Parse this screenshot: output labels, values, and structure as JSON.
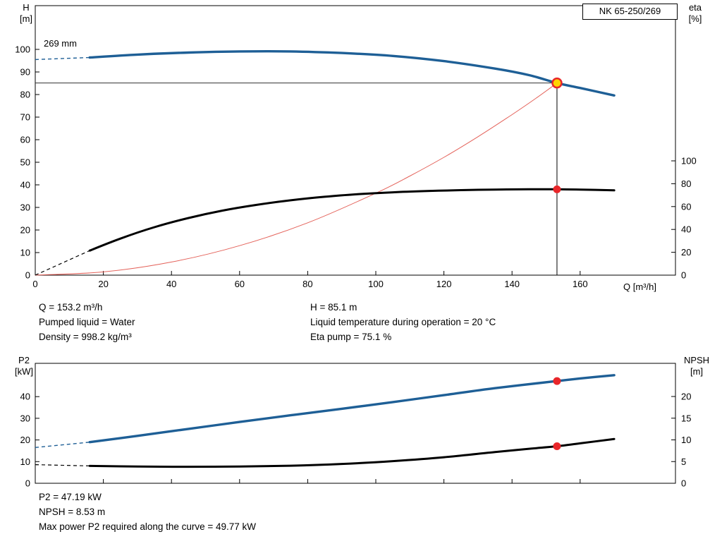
{
  "header": {
    "model": "NK 65-250/269"
  },
  "labels": {
    "h_line1": "H",
    "h_line2": "[m]",
    "eta_line1": "eta",
    "eta_line2": "[%]",
    "q": "Q [m³/h]",
    "p2_line1": "P2",
    "p2_line2": "[kW]",
    "npsh_line1": "NPSH",
    "npsh_line2": "[m]"
  },
  "info_top": {
    "left": [
      "Q = 153.2 m³/h",
      "Pumped liquid = Water",
      "Density = 998.2 kg/m³"
    ],
    "right": [
      "H = 85.1 m",
      "Liquid temperature during operation = 20 °C",
      "Eta pump = 75.1 %"
    ]
  },
  "info_bottom": [
    "P2 = 47.19 kW",
    "NPSH = 8.53 m",
    "Max power P2 required along the curve = 49.77 kW"
  ],
  "colors": {
    "curve_blue": "#1e5f96",
    "curve_black": "#000000",
    "system_red": "#e4625a",
    "dot_red": "#e8262a",
    "duty_yellow": "#ffd400"
  },
  "chart_data": [
    {
      "id": "qh",
      "type": "line",
      "title": "NK 65-250/269 pump performance curve",
      "xlabel": "Q [m³/h]",
      "ylabel_left": "H [m]",
      "ylabel_right": "eta [%]",
      "impeller_label": "269 mm",
      "x_ticks": [
        0,
        20,
        40,
        60,
        80,
        100,
        120,
        140,
        160
      ],
      "xlim": [
        0,
        188
      ],
      "y_left_ticks": [
        0,
        10,
        20,
        30,
        40,
        50,
        60,
        70,
        80,
        90,
        100
      ],
      "ylim_left": [
        0,
        119
      ],
      "y_right_ticks": [
        0,
        20,
        40,
        60,
        80,
        100
      ],
      "grid": false,
      "series": [
        {
          "name": "system-curve",
          "axis": "H",
          "color": "#e4625a",
          "width": 1,
          "dash_width": 0,
          "points": [
            [
              0,
              0
            ],
            [
              20,
              1.45
            ],
            [
              40,
              5.8
            ],
            [
              60,
              13.05
            ],
            [
              80,
              23.2
            ],
            [
              100,
              36.3
            ],
            [
              110,
              43.9
            ],
            [
              120,
              52.2
            ],
            [
              130,
              61.3
            ],
            [
              140,
              71.1
            ],
            [
              147,
              78.3
            ],
            [
              153.2,
              85.1
            ]
          ]
        },
        {
          "name": "efficiency-curve",
          "axis": "eta",
          "color": "#000000",
          "width": 3,
          "dash_width": 1.2,
          "dash_points": [
            [
              0,
              0
            ],
            [
              16,
              21.5
            ]
          ],
          "points": [
            [
              16,
              21.5
            ],
            [
              25,
              32
            ],
            [
              35,
              42
            ],
            [
              45,
              50
            ],
            [
              55,
              56.5
            ],
            [
              65,
              61.5
            ],
            [
              75,
              65.5
            ],
            [
              85,
              68.6
            ],
            [
              95,
              70.9
            ],
            [
              105,
              72.5
            ],
            [
              115,
              73.6
            ],
            [
              125,
              74.4
            ],
            [
              135,
              74.9
            ],
            [
              145,
              75.1
            ],
            [
              153.2,
              75.1
            ],
            [
              160,
              74.9
            ],
            [
              170,
              74.2
            ]
          ]
        },
        {
          "name": "head-curve-269mm",
          "axis": "H",
          "color": "#1e5f96",
          "width": 3.4,
          "dash_width": 1.4,
          "dash_points": [
            [
              0,
              95.5
            ],
            [
              16,
              96.4
            ]
          ],
          "points": [
            [
              16,
              96.4
            ],
            [
              30,
              97.7
            ],
            [
              45,
              98.6
            ],
            [
              60,
              99.1
            ],
            [
              75,
              99.1
            ],
            [
              90,
              98.4
            ],
            [
              105,
              97.1
            ],
            [
              120,
              94.8
            ],
            [
              135,
              91.5
            ],
            [
              145,
              88.6
            ],
            [
              153.2,
              85.1
            ],
            [
              160,
              82.9
            ],
            [
              170,
              79.6
            ]
          ]
        }
      ],
      "ref_lines": [
        {
          "name": "head-reference-line",
          "type": "h",
          "value": 85.1,
          "to_q": 153.2,
          "color": "#333333"
        },
        {
          "name": "flow-reference-line",
          "type": "v",
          "value": 153.2,
          "to_h": 85.1,
          "color": "#000000"
        }
      ],
      "markers": [
        {
          "name": "duty-point",
          "axis": "H",
          "q": 153.2,
          "value": 85.1,
          "fill": "#ffd400",
          "stroke": "#e8262a",
          "r": 6.5,
          "stroke_width": 2.5,
          "interactable": "true"
        },
        {
          "name": "efficiency-point",
          "axis": "eta",
          "q": 153.2,
          "value": 75.1,
          "fill": "#e8262a",
          "stroke": "none",
          "r": 5.5,
          "stroke_width": 0,
          "interactable": "false"
        }
      ]
    },
    {
      "id": "p2npsh",
      "type": "line",
      "title": "P2 and NPSH curves",
      "xlabel": "",
      "ylabel_left": "P2 [kW]",
      "ylabel_right": "NPSH [m]",
      "x_ticks": [
        0,
        20,
        40,
        60,
        80,
        100,
        120,
        140,
        160
      ],
      "xlim": [
        0,
        188
      ],
      "y_left_ticks": [
        0,
        10,
        20,
        30,
        40
      ],
      "ylim_left": [
        0,
        55
      ],
      "y_right_ticks": [
        0,
        5,
        10,
        15,
        20
      ],
      "grid": false,
      "series": [
        {
          "name": "p2-curve",
          "axis": "P2",
          "color": "#1e5f96",
          "width": 3.4,
          "dash_width": 1.4,
          "dash_points": [
            [
              0,
              16.5
            ],
            [
              16,
              19.0
            ]
          ],
          "points": [
            [
              16,
              19.0
            ],
            [
              30,
              21.9
            ],
            [
              45,
              25.1
            ],
            [
              60,
              28.3
            ],
            [
              75,
              31.4
            ],
            [
              90,
              34.4
            ],
            [
              105,
              37.5
            ],
            [
              120,
              40.7
            ],
            [
              135,
              43.9
            ],
            [
              153.2,
              47.19
            ],
            [
              160,
              48.4
            ],
            [
              170,
              49.9
            ]
          ]
        },
        {
          "name": "npsh-curve",
          "axis": "NPSH",
          "color": "#000000",
          "width": 3,
          "dash_width": 1.2,
          "dash_points": [
            [
              0,
              4.3
            ],
            [
              16,
              4.0
            ]
          ],
          "points": [
            [
              16,
              4.0
            ],
            [
              30,
              3.85
            ],
            [
              45,
              3.8
            ],
            [
              60,
              3.85
            ],
            [
              75,
              4.05
            ],
            [
              90,
              4.45
            ],
            [
              105,
              5.1
            ],
            [
              120,
              6.0
            ],
            [
              135,
              7.2
            ],
            [
              145,
              7.95
            ],
            [
              153.2,
              8.53
            ],
            [
              160,
              9.2
            ],
            [
              170,
              10.2
            ]
          ]
        }
      ],
      "ref_lines": [],
      "markers": [
        {
          "name": "p2-point",
          "axis": "P2",
          "q": 153.2,
          "value": 47.19,
          "fill": "#e8262a",
          "stroke": "none",
          "r": 5.5,
          "stroke_width": 0,
          "interactable": "false"
        },
        {
          "name": "npsh-point",
          "axis": "NPSH",
          "q": 153.2,
          "value": 8.53,
          "fill": "#e8262a",
          "stroke": "none",
          "r": 5.5,
          "stroke_width": 0,
          "interactable": "false"
        }
      ]
    }
  ]
}
